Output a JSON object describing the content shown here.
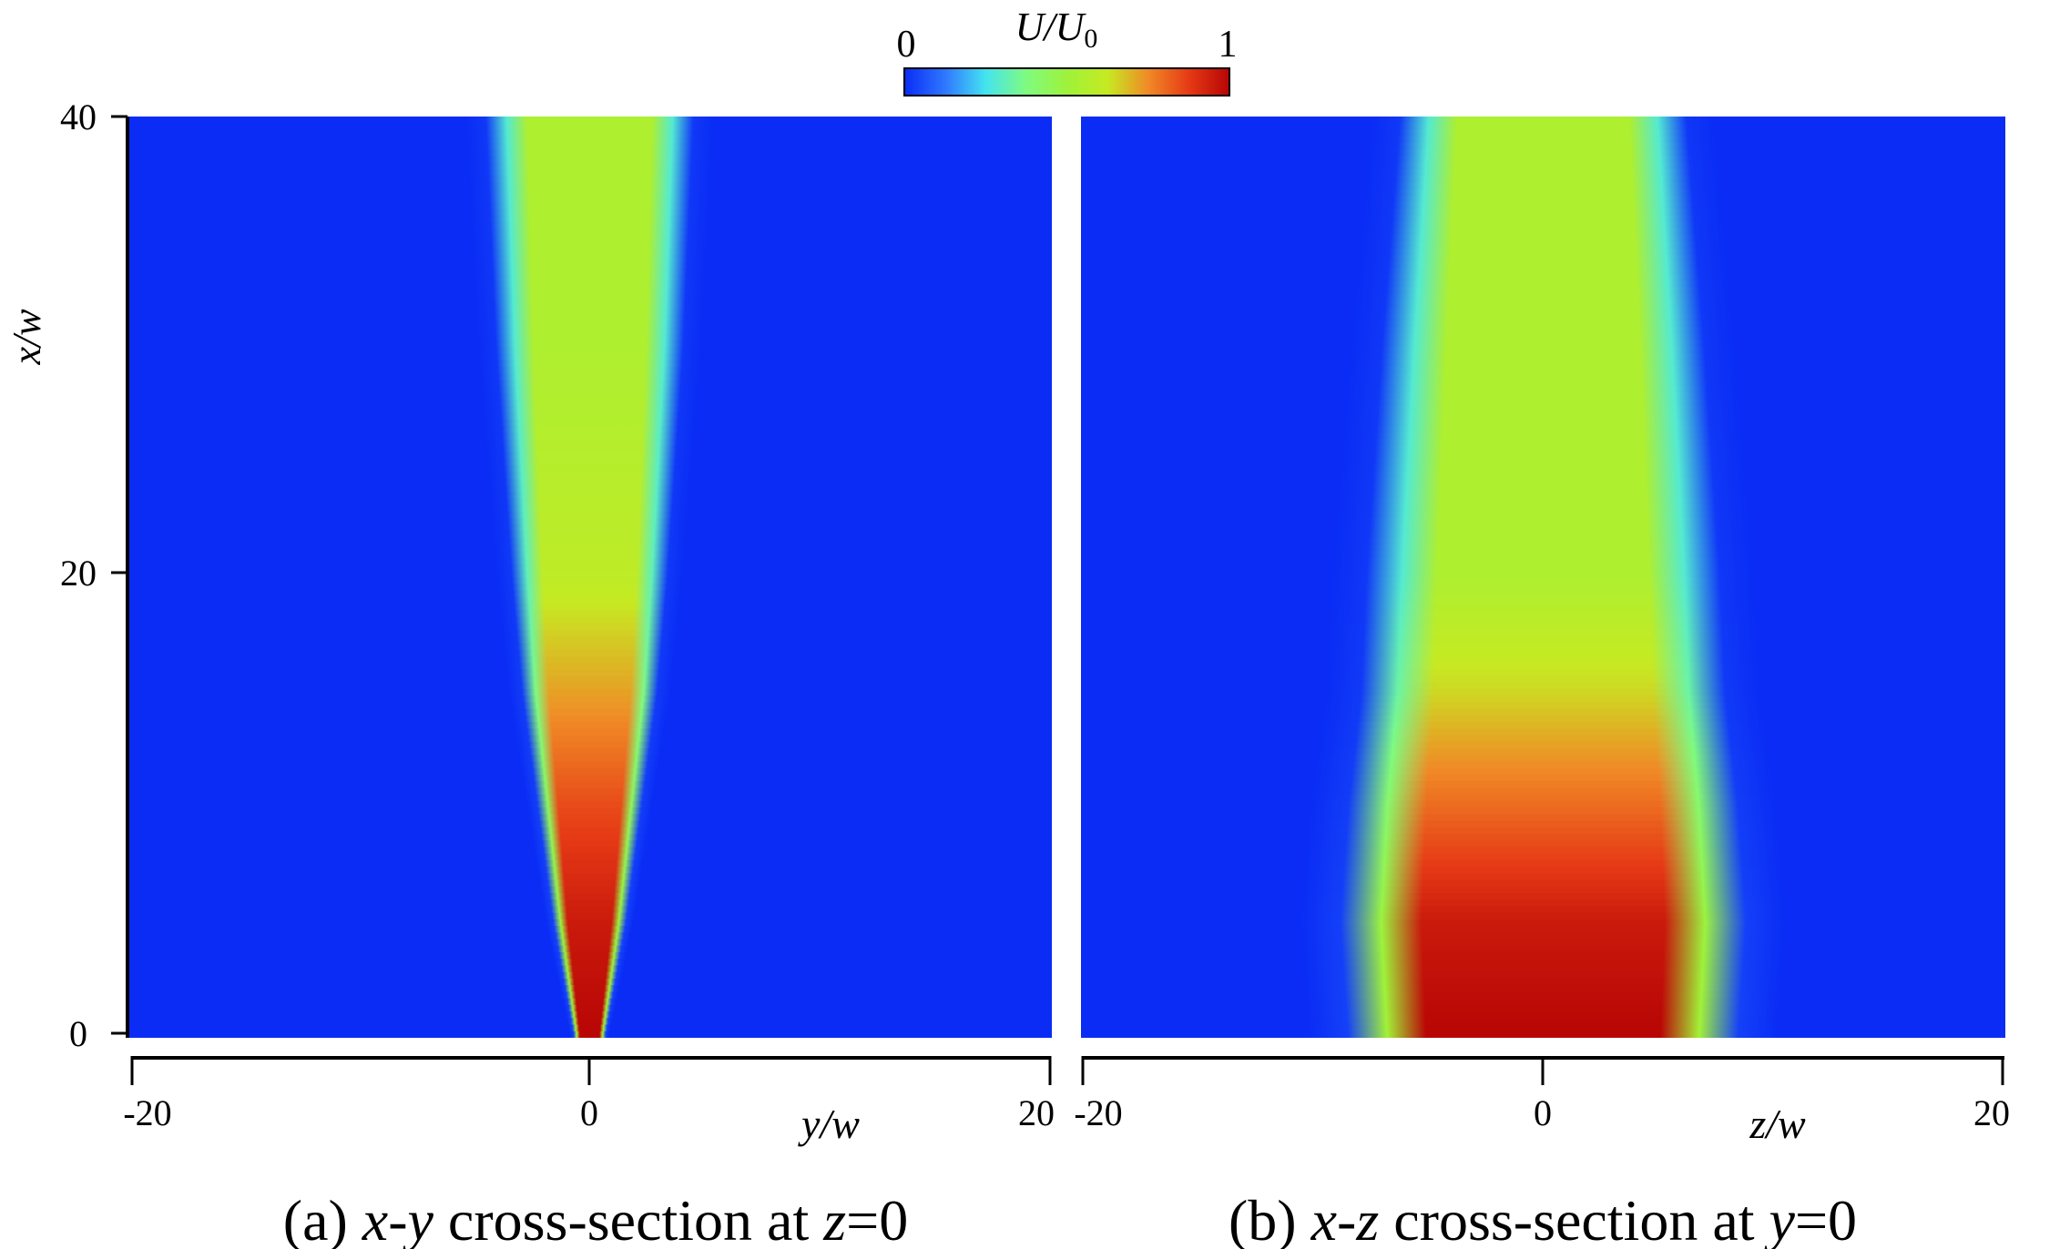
{
  "colorbar": {
    "label_main": "U/U",
    "label_sub": "0",
    "min_label": "0",
    "max_label": "1",
    "colormap": [
      "#0a2cf5",
      "#2f77ff",
      "#44e4f0",
      "#7ffb80",
      "#9ef23a",
      "#c6ea22",
      "#f08a26",
      "#e63a16",
      "#b70505"
    ]
  },
  "chart_data": [
    {
      "type": "heatmap",
      "panel_caption": {
        "letter": "(a) ",
        "v1": "x",
        "sep": "-",
        "v2": "y",
        "text": " cross-section at ",
        "v3": "z",
        "eq": "=0"
      },
      "xlabel": "y/w",
      "ylabel": "x/w",
      "xlim": [
        -20,
        20
      ],
      "ylim": [
        0,
        40
      ],
      "xticks": [
        "-20",
        "0",
        "20"
      ],
      "yticks": [
        "0",
        "20",
        "40"
      ],
      "value_range": [
        0,
        1
      ],
      "jet_half_width_profile": [
        {
          "x": 0,
          "half_width": 0.6,
          "centerline_velocity": 1.0
        },
        {
          "x": 5,
          "half_width": 1.4,
          "centerline_velocity": 0.95
        },
        {
          "x": 10,
          "half_width": 2.0,
          "centerline_velocity": 0.85
        },
        {
          "x": 15,
          "half_width": 2.6,
          "centerline_velocity": 0.72
        },
        {
          "x": 20,
          "half_width": 3.0,
          "centerline_velocity": 0.6
        },
        {
          "x": 30,
          "half_width": 3.6,
          "centerline_velocity": 0.55
        },
        {
          "x": 40,
          "half_width": 4.0,
          "centerline_velocity": 0.55
        }
      ]
    },
    {
      "type": "heatmap",
      "panel_caption": {
        "letter": "(b) ",
        "v1": "x",
        "sep": "-",
        "v2": "z",
        "text": " cross-section at ",
        "v3": "y",
        "eq": "=0"
      },
      "xlabel": "z/w",
      "xlim": [
        -20,
        20
      ],
      "ylim": [
        0,
        40
      ],
      "xticks": [
        "-20",
        "0",
        "20"
      ],
      "value_range": [
        0,
        1
      ],
      "jet_half_width_profile": [
        {
          "x": 0,
          "half_width": 7.5,
          "centerline_velocity": 1.0
        },
        {
          "x": 5,
          "half_width": 7.8,
          "centerline_velocity": 0.95
        },
        {
          "x": 10,
          "half_width": 7.5,
          "centerline_velocity": 0.8
        },
        {
          "x": 15,
          "half_width": 7.0,
          "centerline_velocity": 0.65
        },
        {
          "x": 20,
          "half_width": 6.8,
          "centerline_velocity": 0.55
        },
        {
          "x": 30,
          "half_width": 6.2,
          "centerline_velocity": 0.55
        },
        {
          "x": 40,
          "half_width": 5.5,
          "centerline_velocity": 0.55
        }
      ]
    }
  ]
}
